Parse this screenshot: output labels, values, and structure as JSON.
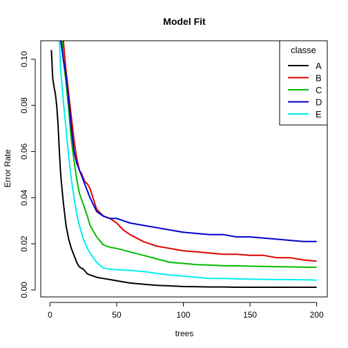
{
  "chart_data": {
    "type": "line",
    "title": "Model Fit",
    "xlabel": "trees",
    "ylabel": "Error Rate",
    "xlim": [
      1,
      200
    ],
    "ylim": [
      -0.003,
      0.108
    ],
    "x_ticks": [
      0,
      50,
      100,
      150,
      200
    ],
    "y_ticks": [
      0.0,
      0.02,
      0.04,
      0.06,
      0.08,
      0.1
    ],
    "x_tick_labels": [
      "0",
      "50",
      "100",
      "150",
      "200"
    ],
    "y_tick_labels": [
      "0.00",
      "0.02",
      "0.04",
      "0.06",
      "0.08",
      "0.10"
    ],
    "grid": false,
    "legend": {
      "title": "classe",
      "placement": "top-right"
    },
    "series": [
      {
        "name": "A",
        "color": "#000000",
        "x": [
          1,
          2,
          3,
          4,
          5,
          6,
          7,
          8,
          10,
          12,
          14,
          16,
          18,
          20,
          22,
          25,
          28,
          30,
          35,
          40,
          45,
          50,
          60,
          70,
          80,
          90,
          100,
          110,
          120,
          130,
          140,
          150,
          160,
          170,
          180,
          190,
          200
        ],
        "values": [
          0.104,
          0.092,
          0.088,
          0.085,
          0.08,
          0.072,
          0.06,
          0.05,
          0.038,
          0.028,
          0.022,
          0.018,
          0.015,
          0.012,
          0.01,
          0.009,
          0.007,
          0.0065,
          0.0055,
          0.005,
          0.0045,
          0.004,
          0.003,
          0.0025,
          0.002,
          0.0018,
          0.0015,
          0.0014,
          0.0013,
          0.0013,
          0.0012,
          0.0012,
          0.0012,
          0.0012,
          0.0012,
          0.0012,
          0.0012
        ]
      },
      {
        "name": "B",
        "color": "#dd0000",
        "x": [
          10,
          12,
          14,
          16,
          18,
          20,
          22,
          24,
          26,
          28,
          30,
          35,
          40,
          45,
          50,
          55,
          60,
          70,
          80,
          90,
          100,
          110,
          120,
          130,
          140,
          150,
          160,
          170,
          180,
          190,
          200
        ],
        "values": [
          0.108,
          0.095,
          0.085,
          0.075,
          0.065,
          0.057,
          0.052,
          0.05,
          0.047,
          0.046,
          0.044,
          0.035,
          0.032,
          0.031,
          0.029,
          0.026,
          0.024,
          0.021,
          0.019,
          0.018,
          0.017,
          0.0165,
          0.016,
          0.0155,
          0.0155,
          0.015,
          0.015,
          0.014,
          0.014,
          0.013,
          0.0125
        ]
      },
      {
        "name": "C",
        "color": "#00bb00",
        "x": [
          9,
          10,
          12,
          14,
          16,
          18,
          20,
          22,
          25,
          28,
          30,
          35,
          40,
          45,
          50,
          60,
          70,
          80,
          90,
          100,
          110,
          120,
          130,
          140,
          150,
          160,
          170,
          180,
          190,
          200
        ],
        "values": [
          0.108,
          0.1,
          0.09,
          0.078,
          0.065,
          0.056,
          0.048,
          0.042,
          0.037,
          0.032,
          0.028,
          0.023,
          0.0195,
          0.0185,
          0.018,
          0.0165,
          0.015,
          0.0135,
          0.012,
          0.0115,
          0.011,
          0.0108,
          0.0105,
          0.0105,
          0.0103,
          0.0102,
          0.0101,
          0.01,
          0.0099,
          0.0098
        ]
      },
      {
        "name": "D",
        "color": "#0000cc",
        "x": [
          8,
          10,
          12,
          14,
          16,
          18,
          20,
          22,
          24,
          26,
          28,
          30,
          35,
          40,
          45,
          50,
          55,
          60,
          70,
          80,
          90,
          100,
          110,
          120,
          130,
          140,
          150,
          160,
          170,
          180,
          190,
          200
        ],
        "values": [
          0.108,
          0.1,
          0.093,
          0.082,
          0.07,
          0.06,
          0.055,
          0.052,
          0.049,
          0.046,
          0.043,
          0.04,
          0.034,
          0.032,
          0.031,
          0.031,
          0.03,
          0.029,
          0.028,
          0.027,
          0.026,
          0.025,
          0.0245,
          0.024,
          0.024,
          0.023,
          0.023,
          0.0225,
          0.022,
          0.0215,
          0.021,
          0.021
        ]
      },
      {
        "name": "E",
        "color": "#00eeee",
        "x": [
          7,
          8,
          10,
          12,
          14,
          16,
          18,
          20,
          22,
          25,
          28,
          30,
          35,
          40,
          45,
          50,
          60,
          70,
          80,
          90,
          100,
          110,
          120,
          130,
          140,
          150,
          160,
          170,
          180,
          190,
          200
        ],
        "values": [
          0.108,
          0.095,
          0.082,
          0.07,
          0.058,
          0.048,
          0.04,
          0.033,
          0.028,
          0.022,
          0.018,
          0.016,
          0.012,
          0.0095,
          0.009,
          0.0088,
          0.0085,
          0.008,
          0.0072,
          0.0065,
          0.006,
          0.0055,
          0.005,
          0.005,
          0.0048,
          0.0047,
          0.0046,
          0.0045,
          0.0045,
          0.0044,
          0.0043
        ]
      }
    ]
  }
}
